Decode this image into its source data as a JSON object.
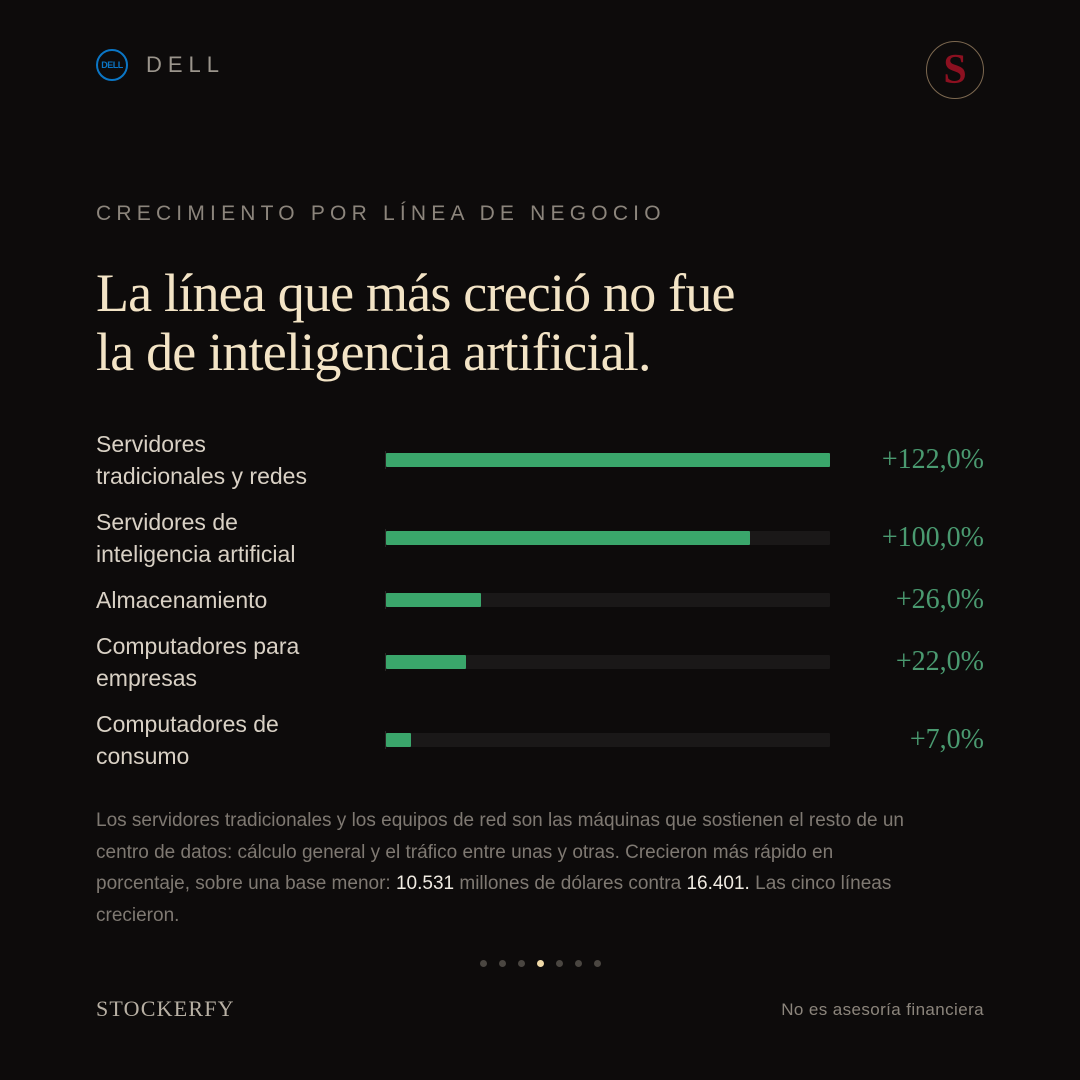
{
  "header": {
    "brand_logo_text": "DELL",
    "brand_name": "DELL",
    "logo_icon": "stockerfy-s-monogram"
  },
  "kicker": "CRECIMIENTO POR LÍNEA DE NEGOCIO",
  "headline": {
    "line1": "La línea que más creció no fue",
    "line2": "la de inteligencia artificial."
  },
  "colors": {
    "bar": "#3aa66b",
    "value": "#4a9a70",
    "track": "#1a1818",
    "headline": "#f3e4c6"
  },
  "chart_data": {
    "type": "bar",
    "orientation": "horizontal",
    "categories": [
      "Servidores tradicionales y redes",
      "Servidores de inteligencia artificial",
      "Almacenamiento",
      "Computadores para empresas",
      "Computadores de consumo"
    ],
    "label_lines": [
      [
        "Servidores",
        "tradicionales y redes"
      ],
      [
        "Servidores de",
        "inteligencia artificial"
      ],
      [
        "Almacenamiento"
      ],
      [
        "Computadores para",
        "empresas"
      ],
      [
        "Computadores de",
        "consumo"
      ]
    ],
    "values": [
      122.0,
      100.0,
      26.0,
      22.0,
      7.0
    ],
    "value_labels": [
      "+122,0%",
      "+100,0%",
      "+26,0%",
      "+22,0%",
      "+7,0%"
    ],
    "xlim": [
      0,
      122
    ],
    "title": "",
    "xlabel": "",
    "ylabel": "",
    "grid": false
  },
  "note": {
    "text1": "Los servidores tradicionales y los equipos de red son las máquinas que sostienen el resto de un centro de datos: cálculo general y el tráfico entre unas y otras. Crecieron más rápido en porcentaje, sobre una base menor: ",
    "highlight1": "10.531",
    "text2": " millones de dólares contra ",
    "highlight2": "16.401.",
    "text3": " Las cinco líneas crecieron."
  },
  "pagination": {
    "total": 7,
    "active": 4
  },
  "footer": {
    "brand": "STOCKERFY",
    "disclaimer": "No es asesoría financiera"
  }
}
